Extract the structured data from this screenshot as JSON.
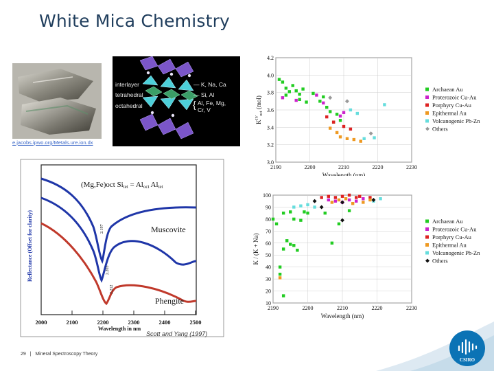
{
  "slide": {
    "title": "White Mica Chemistry",
    "page_number": "29",
    "footer_separator": "|",
    "footer_label": "Mineral Spectroscopy Theory",
    "logo_text": "CSIRO"
  },
  "mica_figure": {
    "labels_left": [
      "interlayer",
      "tetrahedral",
      "octahedral"
    ],
    "labels_right": [
      "K, Na, Ca",
      "Si, Al",
      "Al, Fe, Mg,",
      "Cr, V"
    ],
    "source_link": "e.jacobs.ipwo.org/Metals.ure.ion.dx"
  },
  "spectra_figure": {
    "ylabel": "Reflectance (Offset for clarity)",
    "xlabel": "Wavelength in nm",
    "x_ticks": [
      "2000",
      "2100",
      "2200",
      "2300",
      "2400",
      "2500"
    ],
    "equation_main": "(Mg,Fe)oct Si",
    "equation_sub1": "tet",
    "equation_mid": " = Al",
    "equation_sub2": "oct",
    "equation_end": " Al",
    "equation_sub3": "tet",
    "label_muscovite": "Muscovite",
    "label_phengite": "Phengite",
    "band_labels": [
      "2.197",
      "2.203",
      "2.212"
    ],
    "caption": "Scott and Yang (1997)",
    "curve_colors": [
      "#1f36a8",
      "#1f36a8",
      "#c0392b"
    ]
  },
  "chart_data": [
    {
      "type": "scatter",
      "title": "",
      "xlabel": "Wavelength (nm)",
      "ylabel": "K",
      "ylabel_sup": "IV",
      "ylabel_sub": "oct",
      "ylabel_unit": " (mol)",
      "xlim": [
        2190,
        2230
      ],
      "ylim": [
        3.0,
        4.2
      ],
      "x_ticks": [
        "2190",
        "2200",
        "2210",
        "2220",
        "2230"
      ],
      "y_ticks": [
        "3.0",
        "3.2",
        "3.4",
        "3.6",
        "3.8",
        "4.0",
        "4.2"
      ],
      "grid": true,
      "legend_position": "right",
      "series": [
        {
          "name": "Archaean Au",
          "color": "#22cc22",
          "marker": "square",
          "points": [
            [
              2191,
              3.95
            ],
            [
              2192,
              3.92
            ],
            [
              2193,
              3.85
            ],
            [
              2193,
              3.77
            ],
            [
              2194,
              3.81
            ],
            [
              2195,
              3.88
            ],
            [
              2196,
              3.82
            ],
            [
              2197,
              3.78
            ],
            [
              2197,
              3.72
            ],
            [
              2198,
              3.84
            ],
            [
              2199,
              3.69
            ],
            [
              2201,
              3.79
            ],
            [
              2203,
              3.7
            ],
            [
              2204,
              3.75
            ],
            [
              2205,
              3.63
            ],
            [
              2206,
              3.58
            ],
            [
              2208,
              3.55
            ],
            [
              2209,
              3.48
            ],
            [
              2207,
              3.46
            ]
          ]
        },
        {
          "name": "Proterozoic Cu-Au",
          "color": "#cc22cc",
          "marker": "square",
          "points": [
            [
              2192,
              3.74
            ],
            [
              2196,
              3.71
            ],
            [
              2202,
              3.77
            ],
            [
              2204,
              3.68
            ],
            [
              2210,
              3.57
            ],
            [
              2209,
              3.53
            ]
          ]
        },
        {
          "name": "Porphyry Cu-Au",
          "color": "#dd2222",
          "marker": "square",
          "points": [
            [
              2205,
              3.52
            ],
            [
              2207,
              3.46
            ],
            [
              2210,
              3.41
            ],
            [
              2212,
              3.38
            ]
          ]
        },
        {
          "name": "Epithermal Au",
          "color": "#ee9922",
          "marker": "square",
          "points": [
            [
              2206,
              3.39
            ],
            [
              2208,
              3.34
            ],
            [
              2209,
              3.29
            ],
            [
              2211,
              3.27
            ],
            [
              2213,
              3.26
            ],
            [
              2215,
              3.24
            ]
          ]
        },
        {
          "name": "Volcanogenic Pb-Zn",
          "color": "#66dddd",
          "marker": "square",
          "points": [
            [
              2216,
              3.27
            ],
            [
              2219,
              3.28
            ],
            [
              2222,
              3.66
            ],
            [
              2212,
              3.6
            ],
            [
              2214,
              3.56
            ]
          ]
        },
        {
          "name": "Others",
          "color": "#999999",
          "marker": "diamond",
          "points": [
            [
              2206,
              3.74
            ],
            [
              2211,
              3.7
            ],
            [
              2218,
              3.33
            ]
          ]
        }
      ]
    },
    {
      "type": "scatter",
      "title": "",
      "xlabel": "Wavelength (nm)",
      "ylabel": "K / (K + Na)",
      "xlim": [
        2190,
        2230
      ],
      "ylim": [
        10,
        100
      ],
      "x_ticks": [
        "2190",
        "2200",
        "2210",
        "2220",
        "2230"
      ],
      "y_ticks": [
        "10",
        "20",
        "30",
        "40",
        "50",
        "60",
        "70",
        "80",
        "90",
        "100"
      ],
      "grid": true,
      "legend_position": "right",
      "series": [
        {
          "name": "Archaean Au",
          "color": "#22cc22",
          "marker": "square",
          "points": [
            [
              2190,
              80
            ],
            [
              2191,
              76
            ],
            [
              2193,
              85
            ],
            [
              2195,
              86
            ],
            [
              2196,
              80
            ],
            [
              2198,
              79
            ],
            [
              2199,
              86
            ],
            [
              2200,
              85
            ],
            [
              2194,
              62
            ],
            [
              2195,
              59
            ],
            [
              2196,
              58
            ],
            [
              2197,
              54
            ],
            [
              2193,
              55
            ],
            [
              2192,
              40
            ],
            [
              2192,
              34
            ],
            [
              2193,
              16
            ],
            [
              2209,
              76
            ],
            [
              2205,
              85
            ],
            [
              2212,
              87
            ],
            [
              2207,
              60
            ]
          ]
        },
        {
          "name": "Proterozoic Cu-Au",
          "color": "#cc22cc",
          "marker": "square",
          "points": [
            [
              2206,
              96
            ],
            [
              2208,
              95
            ],
            [
              2210,
              94
            ],
            [
              2212,
              96
            ],
            [
              2214,
              95
            ],
            [
              2216,
              97
            ]
          ]
        },
        {
          "name": "Porphyry Cu-Au",
          "color": "#dd2222",
          "marker": "square",
          "points": [
            [
              2204,
              98
            ],
            [
              2206,
              99
            ],
            [
              2208,
              98
            ],
            [
              2210,
              99
            ],
            [
              2212,
              100
            ],
            [
              2214,
              98
            ],
            [
              2215,
              99
            ],
            [
              2218,
              98
            ]
          ]
        },
        {
          "name": "Epithermal Au",
          "color": "#ee9922",
          "marker": "square",
          "points": [
            [
              2207,
              94
            ],
            [
              2209,
              96
            ],
            [
              2211,
              97
            ],
            [
              2213,
              93
            ],
            [
              2216,
              94
            ],
            [
              2218,
              96
            ],
            [
              2192,
              31
            ]
          ]
        },
        {
          "name": "Volcanogenic Pb-Zn",
          "color": "#66dddd",
          "marker": "square",
          "points": [
            [
              2196,
              90
            ],
            [
              2198,
              91
            ],
            [
              2200,
              92
            ],
            [
              2202,
              90
            ],
            [
              2219,
              95
            ],
            [
              2221,
              97
            ]
          ]
        },
        {
          "name": "Others",
          "color": "#111111",
          "marker": "diamond",
          "points": [
            [
              2202,
              95
            ],
            [
              2204,
              90
            ],
            [
              2210,
              94
            ],
            [
              2219,
              96
            ],
            [
              2210,
              79
            ]
          ]
        }
      ]
    }
  ]
}
